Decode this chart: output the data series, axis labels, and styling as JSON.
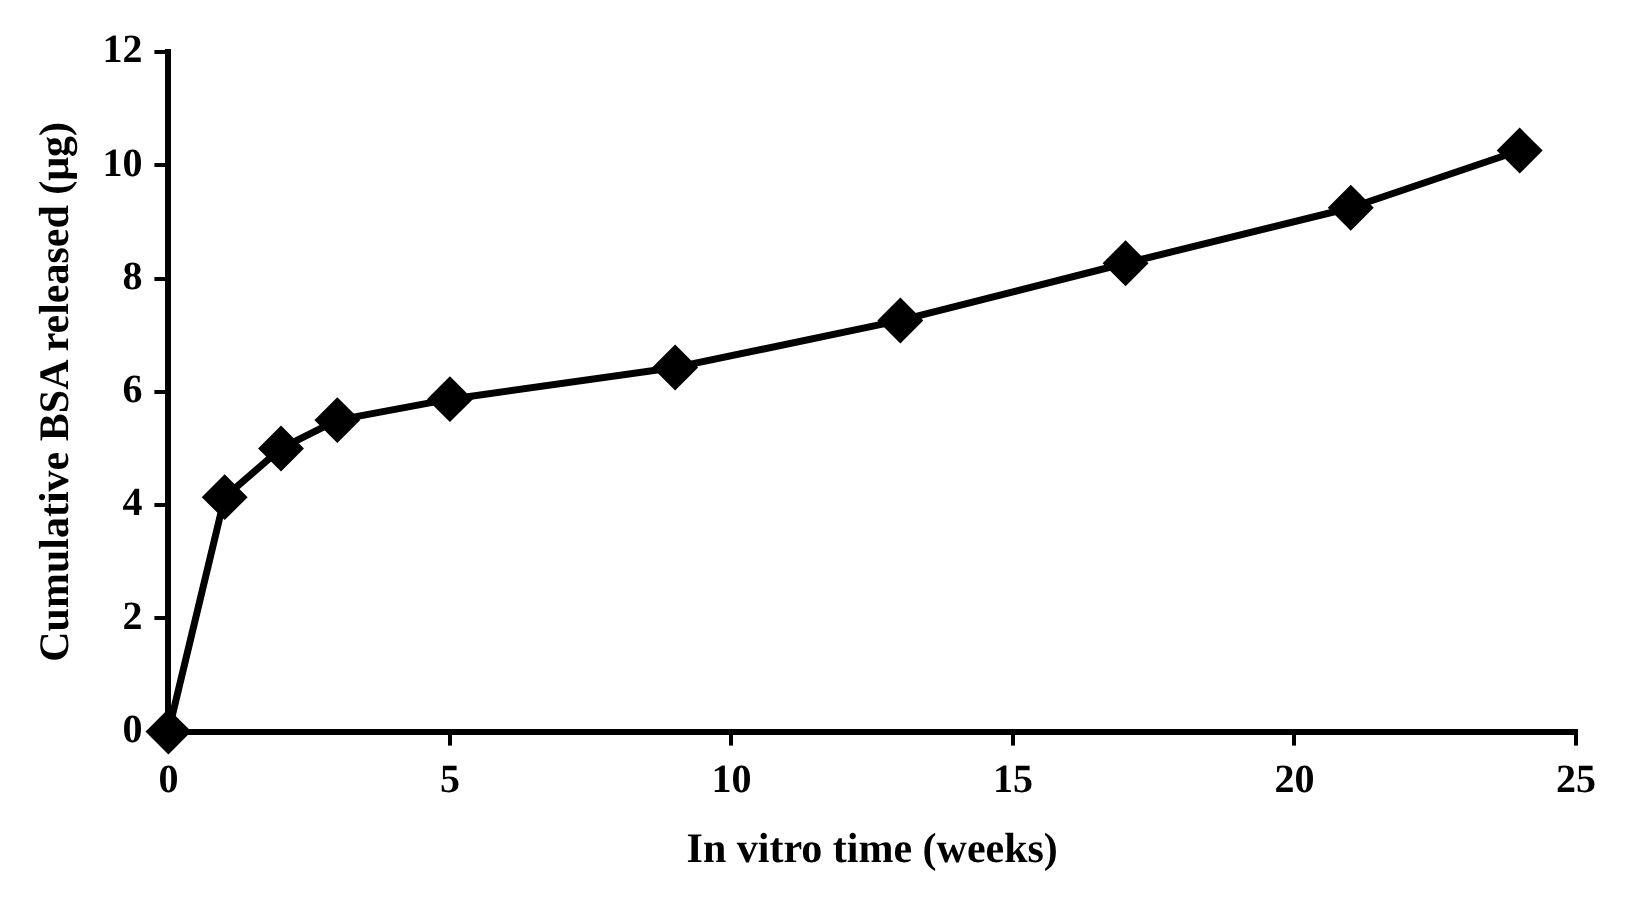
{
  "chart_data": {
    "type": "line",
    "xlabel": "In vitro time (weeks)",
    "ylabel": "Cumulative BSA released (μg)",
    "x": [
      0,
      1,
      2,
      3,
      5,
      9,
      13,
      17,
      21,
      24
    ],
    "series": [
      {
        "color": "#000000",
        "values": [
          0,
          4.14,
          5.0,
          5.5,
          5.87,
          6.43,
          7.26,
          8.27,
          9.25,
          10.26
        ]
      }
    ],
    "xlim": [
      0,
      25
    ],
    "xticks": [
      0,
      5,
      10,
      15,
      20,
      25
    ],
    "ylim": [
      0,
      12
    ],
    "yticks": [
      0,
      2,
      4,
      6,
      8,
      10,
      12
    ],
    "grid": false,
    "legend": false,
    "marker": "diamond",
    "line_style": "solid"
  }
}
